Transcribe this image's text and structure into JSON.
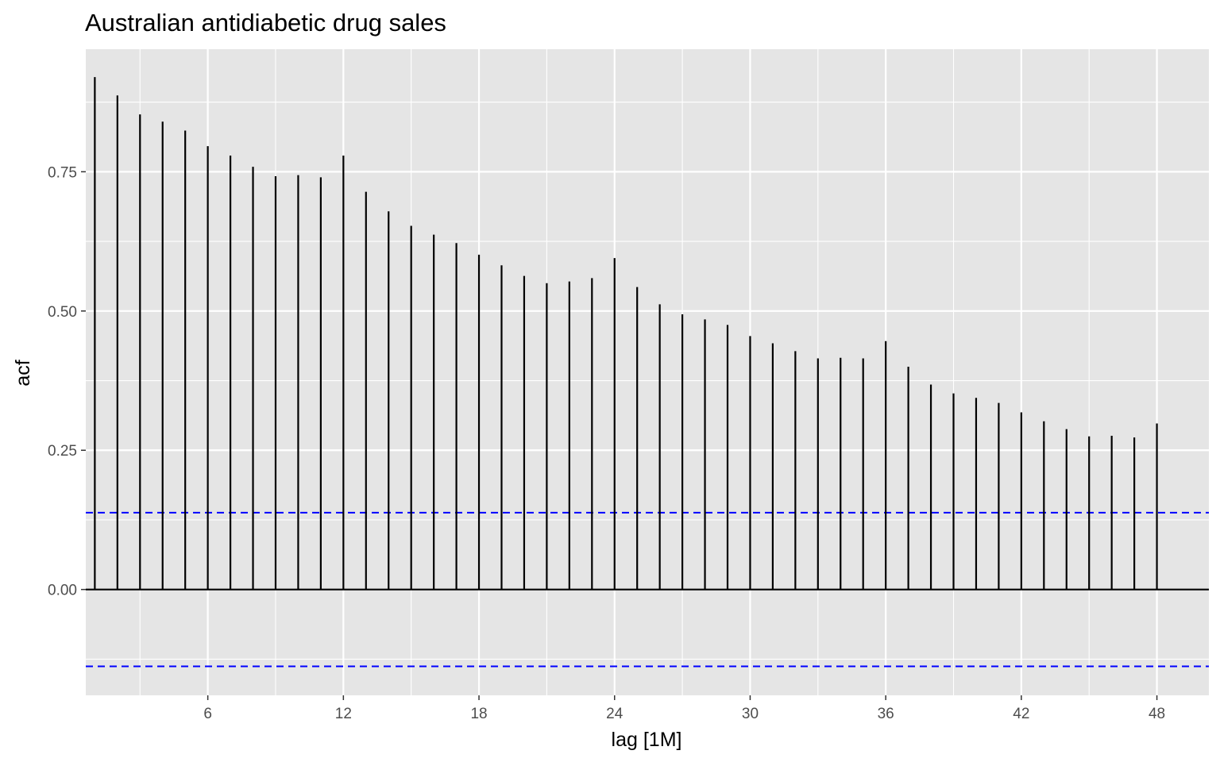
{
  "chart_data": {
    "type": "bar",
    "title": "Australian antidiabetic drug sales",
    "xlabel": "lag [1M]",
    "ylabel": "acf",
    "x_ticks": [
      6,
      12,
      18,
      24,
      30,
      36,
      42,
      48
    ],
    "y_ticks": [
      0.0,
      0.25,
      0.5,
      0.75
    ],
    "y_tick_labels": [
      "0.00",
      "0.25",
      "0.50",
      "0.75"
    ],
    "xlim": [
      0.6,
      50.3
    ],
    "ylim": [
      -0.19,
      0.97
    ],
    "grid": true,
    "confidence_bound": 0.138,
    "colors": {
      "panel": "#e5e5e5",
      "grid": "#ffffff",
      "bars": "#000000",
      "bounds": "#0000ff"
    },
    "lags": [
      1,
      2,
      3,
      4,
      5,
      6,
      7,
      8,
      9,
      10,
      11,
      12,
      13,
      14,
      15,
      16,
      17,
      18,
      19,
      20,
      21,
      22,
      23,
      24,
      25,
      26,
      27,
      28,
      29,
      30,
      31,
      32,
      33,
      34,
      35,
      36,
      37,
      38,
      39,
      40,
      41,
      42,
      43,
      44,
      45,
      46,
      47,
      48
    ],
    "values": [
      0.92,
      0.887,
      0.853,
      0.84,
      0.824,
      0.796,
      0.779,
      0.759,
      0.742,
      0.744,
      0.74,
      0.779,
      0.714,
      0.679,
      0.653,
      0.637,
      0.622,
      0.601,
      0.582,
      0.563,
      0.55,
      0.553,
      0.559,
      0.595,
      0.543,
      0.512,
      0.494,
      0.485,
      0.475,
      0.455,
      0.442,
      0.428,
      0.415,
      0.416,
      0.415,
      0.446,
      0.4,
      0.368,
      0.352,
      0.344,
      0.335,
      0.318,
      0.302,
      0.288,
      0.275,
      0.276,
      0.273,
      0.298
    ]
  }
}
